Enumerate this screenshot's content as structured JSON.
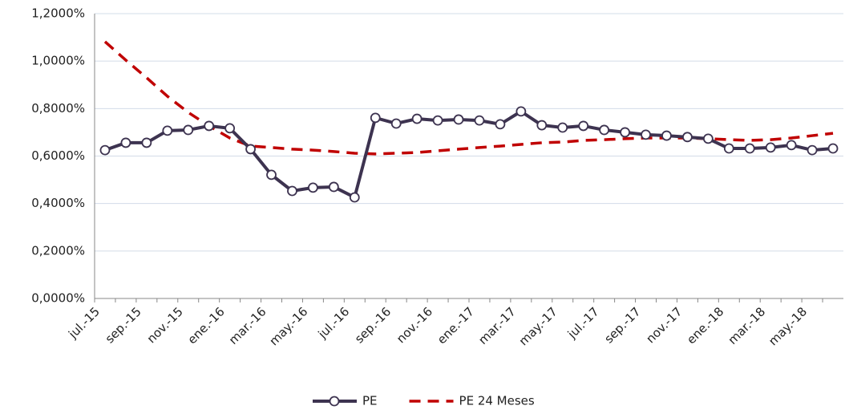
{
  "chart_data": {
    "type": "line",
    "categories": [
      "jul.-15",
      null,
      "sep.-15",
      null,
      "nov.-15",
      null,
      "ene.-16",
      null,
      "mar.-16",
      null,
      "may.-16",
      null,
      "jul.-16",
      null,
      "sep.-16",
      null,
      "nov.-16",
      null,
      "ene.-17",
      null,
      "mar.-17",
      null,
      "may.-17",
      null,
      "jul.-17",
      null,
      "sep.-17",
      null,
      "nov.-17",
      null,
      "ene.-18",
      null,
      "mar.-18",
      null,
      "may.-18",
      null
    ],
    "series": [
      {
        "name": "PE",
        "color": "#3d3350",
        "markers": true,
        "dashed": false,
        "values": [
          0.625,
          0.656,
          0.656,
          0.707,
          0.71,
          0.727,
          0.717,
          0.629,
          0.521,
          0.453,
          0.467,
          0.47,
          0.426,
          0.761,
          0.737,
          0.757,
          0.75,
          0.754,
          0.75,
          0.734,
          0.788,
          0.73,
          0.72,
          0.727,
          0.71,
          0.7,
          0.69,
          0.686,
          0.68,
          0.673,
          0.632,
          0.632,
          0.636,
          0.646,
          0.625,
          0.632
        ]
      },
      {
        "name": "PE 24 Meses",
        "color": "#c00000",
        "markers": false,
        "dashed": true,
        "values": [
          1.082,
          1.004,
          0.93,
          0.852,
          0.784,
          0.727,
          0.676,
          0.642,
          0.636,
          0.629,
          0.625,
          0.619,
          0.612,
          0.609,
          0.612,
          0.615,
          0.622,
          0.629,
          0.636,
          0.642,
          0.649,
          0.656,
          0.659,
          0.666,
          0.669,
          0.673,
          0.676,
          0.676,
          0.676,
          0.673,
          0.669,
          0.666,
          0.669,
          0.676,
          0.686,
          0.696
        ]
      }
    ],
    "ylim": [
      0,
      1.2
    ],
    "yticks": [
      {
        "value": 0,
        "label": "0,0000%"
      },
      {
        "value": 0.2,
        "label": "0,2000%"
      },
      {
        "value": 0.4,
        "label": "0,4000%"
      },
      {
        "value": 0.6,
        "label": "0,6000%"
      },
      {
        "value": 0.8,
        "label": "0,8000%"
      },
      {
        "value": 1.0,
        "label": "1,0000%"
      },
      {
        "value": 1.2,
        "label": "1,2000%"
      }
    ],
    "grid": true,
    "legend": "bottom"
  }
}
